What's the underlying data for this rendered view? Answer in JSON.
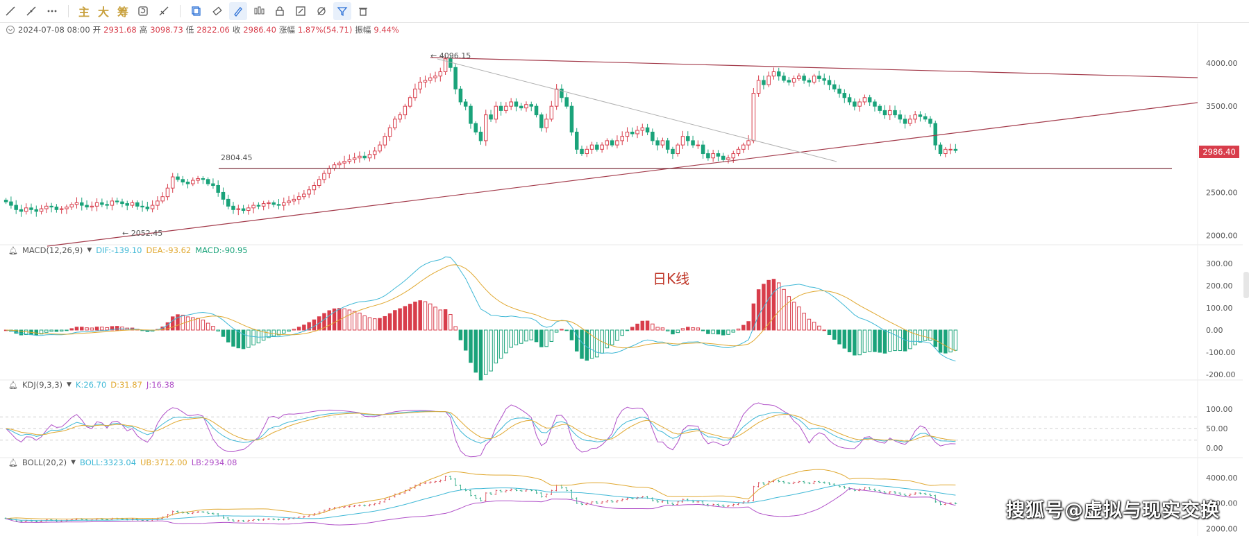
{
  "toolbar": {
    "text_buttons": [
      "主",
      "大",
      "筹"
    ]
  },
  "info_bar": {
    "datetime": "2024-07-08 08:00",
    "open_label": "开",
    "open": "2931.68",
    "high_label": "高",
    "high": "3098.73",
    "low_label": "低",
    "low": "2822.06",
    "close_label": "收",
    "close": "2986.40",
    "change_label": "涨幅",
    "change": "1.87%(54.71)",
    "amp_label": "振幅",
    "amp": "9.44%"
  },
  "macd_label": {
    "name": "MACD(12,26,9)",
    "dif": "DIF:-139.10",
    "dea": "DEA:-93.62",
    "macd": "MACD:-90.95"
  },
  "kdj_label": {
    "name": "KDJ(9,3,3)",
    "k": "K:26.70",
    "d": "D:31.87",
    "j": "J:16.38"
  },
  "boll_label": {
    "name": "BOLL(20,2)",
    "boll": "BOLL:3323.04",
    "ub": "UB:3712.00",
    "lb": "LB:2934.08"
  },
  "overlay_title": "日K线",
  "current_price_tag": "2986.40",
  "watermark": "搜狐号@虚拟与现实交换",
  "annotations": {
    "high": "4096.15",
    "low": "2052.45",
    "support": "2804.45"
  },
  "axes": {
    "price_ticks": [
      "4000.00",
      "3500.00",
      "3000.00",
      "2500.00",
      "2000.00"
    ],
    "macd_ticks": [
      "300.00",
      "200.00",
      "100.00",
      "0.00",
      "-100.00",
      "-200.00"
    ],
    "kdj_ticks": [
      "100.00",
      "50.00",
      "0.00"
    ],
    "boll_ticks": [
      "4000.00",
      "3000.00",
      "2000.00"
    ]
  },
  "colors": {
    "up": "#d83d4b",
    "down": "#1aa37a",
    "dif": "#3fb8d6",
    "dea": "#e0a830",
    "k": "#3fb8d6",
    "d": "#e0a830",
    "j": "#b050c8",
    "trendline": "#a33a4a",
    "grayline": "#b0b0b0"
  },
  "chart_data": {
    "type": "candlestick",
    "price_axis": {
      "ylim": [
        1900,
        4250
      ]
    },
    "closes": [
      2390,
      2350,
      2300,
      2280,
      2320,
      2300,
      2280,
      2310,
      2340,
      2330,
      2300,
      2310,
      2330,
      2360,
      2380,
      2350,
      2330,
      2340,
      2380,
      2360,
      2350,
      2400,
      2390,
      2370,
      2350,
      2380,
      2340,
      2330,
      2310,
      2350,
      2400,
      2450,
      2550,
      2680,
      2650,
      2620,
      2600,
      2640,
      2660,
      2650,
      2600,
      2580,
      2500,
      2420,
      2340,
      2300,
      2310,
      2290,
      2320,
      2350,
      2340,
      2370,
      2380,
      2360,
      2350,
      2380,
      2400,
      2420,
      2450,
      2480,
      2530,
      2580,
      2650,
      2720,
      2780,
      2820,
      2840,
      2860,
      2880,
      2900,
      2920,
      2900,
      2940,
      2980,
      3050,
      3150,
      3250,
      3350,
      3400,
      3500,
      3600,
      3700,
      3780,
      3800,
      3830,
      3850,
      3900,
      4050,
      3950,
      3700,
      3550,
      3500,
      3300,
      3200,
      3100,
      3400,
      3350,
      3500,
      3450,
      3500,
      3550,
      3500,
      3480,
      3520,
      3500,
      3400,
      3250,
      3350,
      3500,
      3700,
      3600,
      3500,
      3200,
      3000,
      2950,
      3000,
      3050,
      3000,
      3050,
      3100,
      3050,
      3100,
      3150,
      3200,
      3180,
      3220,
      3250,
      3200,
      3100,
      3050,
      3100,
      3000,
      2950,
      3050,
      3150,
      3100,
      3050,
      3050,
      2950,
      2900,
      2950,
      2920,
      2880,
      2900,
      2950,
      3000,
      3050,
      3100,
      3650,
      3800,
      3750,
      3850,
      3900,
      3850,
      3800,
      3780,
      3820,
      3850,
      3800,
      3780,
      3850,
      3820,
      3800,
      3750,
      3700,
      3650,
      3600,
      3550,
      3500,
      3550,
      3600,
      3550,
      3500,
      3450,
      3400,
      3450,
      3400,
      3350,
      3300,
      3350,
      3400,
      3380,
      3350,
      3300,
      3050,
      2950,
      3000,
      3000,
      2986
    ],
    "support_level": 2804.45,
    "annotated_high": 4096.15,
    "annotated_low": 2052.45
  }
}
